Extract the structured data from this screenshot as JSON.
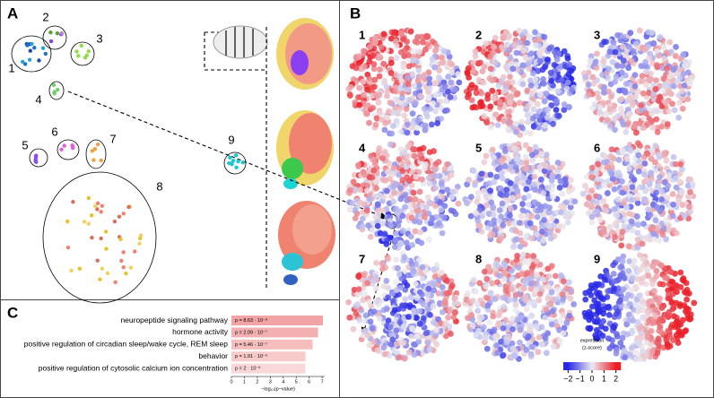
{
  "panel_labels": [
    "A",
    "B",
    "C"
  ],
  "panel_a": {
    "clusters": [
      {
        "label": "1"
      },
      {
        "label": "2"
      },
      {
        "label": "3"
      },
      {
        "label": "4"
      },
      {
        "label": "5"
      },
      {
        "label": "6"
      },
      {
        "label": "7"
      },
      {
        "label": "8"
      },
      {
        "label": "9"
      }
    ]
  },
  "panel_b": {
    "maps": [
      {
        "label": "1"
      },
      {
        "label": "2"
      },
      {
        "label": "3"
      },
      {
        "label": "4"
      },
      {
        "label": "5"
      },
      {
        "label": "6"
      },
      {
        "label": "7"
      },
      {
        "label": "8"
      },
      {
        "label": "9"
      }
    ],
    "colorbar": {
      "title": [
        "expression",
        "(z-score)"
      ],
      "lim": [
        -2.4,
        2.4
      ],
      "ticks": [
        {
          "value": -2,
          "label": "−2"
        },
        {
          "value": -1,
          "label": "−1"
        },
        0,
        1,
        2
      ]
    }
  },
  "chart_data": {
    "type": "hbar",
    "categories": [
      "neuropeptide signaling pathway",
      "hormone activity",
      "positive regulation of circadian sleep/wake cycle, REM sleep",
      "behavior",
      "positive regulation of cytosolic calcium ion concentration"
    ],
    "values": [
      7.064,
      6.68,
      6.263,
      5.719,
      5.699
    ],
    "value_labels": [
      "p = 8.63 · 10⁻⁸",
      "p = 2.09 · 10⁻⁷",
      "p = 5.46 · 10⁻⁷",
      "p = 1.91 · 10⁻⁶",
      "p = 2 · 10⁻⁶"
    ],
    "colors": [
      "#f2a3a4",
      "#f4b0b0",
      "#f6bdbd",
      "#f8cbcb",
      "#fad7d7"
    ],
    "xlabel": "−log₁₀(p−value)",
    "xlim": [
      0,
      7.2
    ],
    "xticks": [
      0,
      1,
      2,
      3,
      4,
      5,
      6,
      7
    ]
  }
}
